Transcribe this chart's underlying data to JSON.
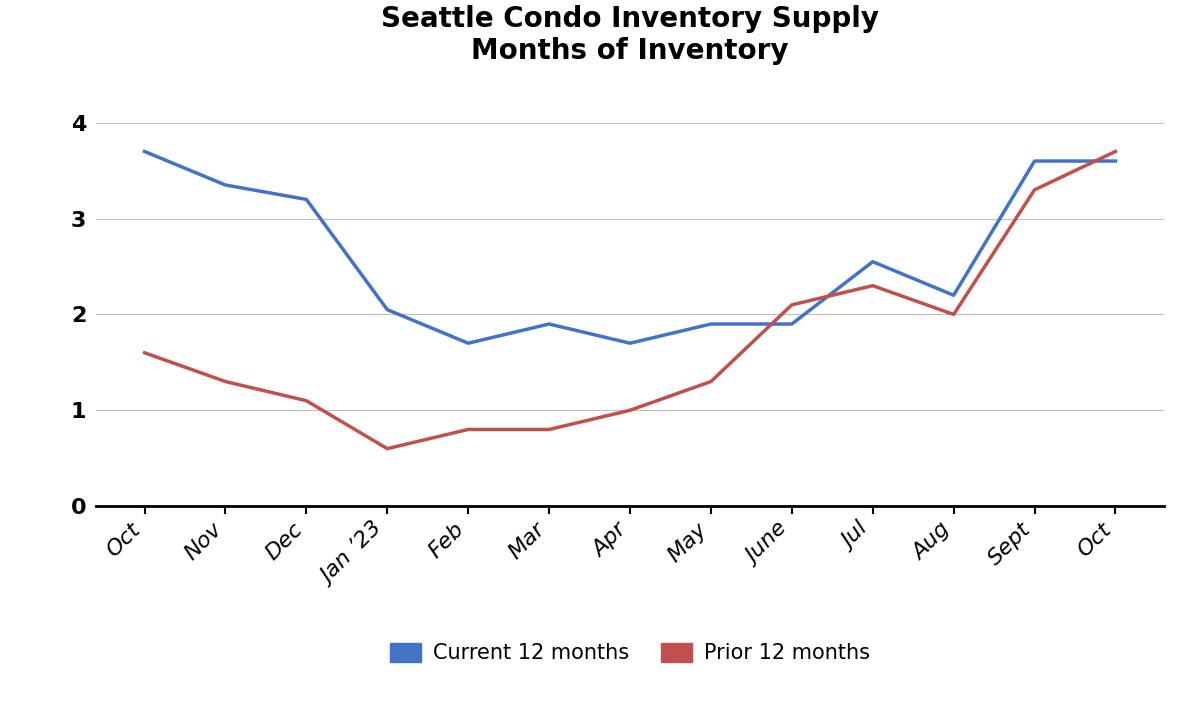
{
  "title_line1": "Seattle Condo Inventory Supply",
  "title_line2": "Months of Inventory",
  "x_labels": [
    "Oct",
    "Nov",
    "Dec",
    "Jan ’23",
    "Feb",
    "Mar",
    "Apr",
    "May",
    "June",
    "Jul",
    "Aug",
    "Sept",
    "Oct"
  ],
  "current_12months": [
    3.7,
    3.35,
    3.2,
    2.05,
    1.7,
    1.9,
    1.7,
    1.9,
    1.9,
    2.55,
    2.2,
    3.6,
    3.6
  ],
  "prior_12months": [
    1.6,
    1.3,
    1.1,
    0.6,
    0.8,
    0.8,
    1.0,
    1.3,
    2.1,
    2.3,
    2.0,
    3.3,
    3.7
  ],
  "current_color": "#4472C4",
  "prior_color": "#C0504D",
  "background_color": "#FFFFFF",
  "grid_color": "#C0C0C0",
  "line_width": 2.5,
  "ylim": [
    0,
    4.4
  ],
  "yticks": [
    0,
    1,
    2,
    3,
    4
  ],
  "legend_current": "Current 12 months",
  "legend_prior": "Prior 12 months",
  "title_fontsize": 20,
  "tick_fontsize": 16,
  "legend_fontsize": 15
}
